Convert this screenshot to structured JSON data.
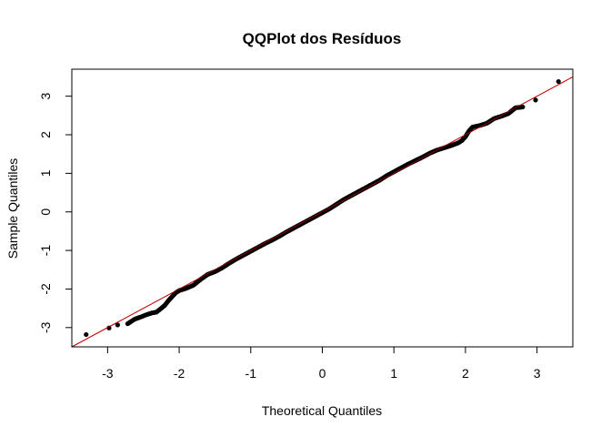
{
  "chart_data": {
    "type": "scatter",
    "title": "QQPlot dos Resíduos",
    "xlabel": "Theoretical Quantiles",
    "ylabel": "Sample Quantiles",
    "xlim": [
      -3.5,
      3.5
    ],
    "ylim": [
      -3.5,
      3.7
    ],
    "x_ticks": [
      -3,
      -2,
      -1,
      0,
      1,
      2,
      3
    ],
    "x_tick_labels": [
      "-3",
      "-2",
      "-1",
      "0",
      "1",
      "2",
      "3"
    ],
    "y_ticks": [
      -3,
      -2,
      -1,
      0,
      1,
      2,
      3
    ],
    "y_tick_labels": [
      "-3",
      "-2",
      "-1",
      "0",
      "1",
      "2",
      "3"
    ],
    "grid": false,
    "legend": "none",
    "point_color": "#000000",
    "line_color": "#cc0000",
    "reference_line": {
      "slope": 1.0,
      "intercept": 0.0
    },
    "points": [
      [
        -3.3,
        -3.18
      ],
      [
        -2.98,
        -3.01
      ],
      [
        -2.86,
        -2.93
      ],
      [
        -2.72,
        -2.9
      ],
      [
        -2.62,
        -2.78
      ],
      [
        -2.53,
        -2.72
      ],
      [
        -2.45,
        -2.66
      ],
      [
        -2.38,
        -2.62
      ],
      [
        -2.32,
        -2.6
      ],
      [
        -2.25,
        -2.5
      ],
      [
        -2.2,
        -2.42
      ],
      [
        -2.15,
        -2.3
      ],
      [
        -2.1,
        -2.2
      ],
      [
        -2.05,
        -2.1
      ],
      [
        -2.0,
        -2.04
      ],
      [
        -1.9,
        -1.98
      ],
      [
        -1.8,
        -1.9
      ],
      [
        -1.7,
        -1.75
      ],
      [
        -1.6,
        -1.62
      ],
      [
        -1.5,
        -1.55
      ],
      [
        -1.4,
        -1.45
      ],
      [
        -1.3,
        -1.33
      ],
      [
        -1.2,
        -1.22
      ],
      [
        -1.1,
        -1.12
      ],
      [
        -1.0,
        -1.02
      ],
      [
        -0.9,
        -0.92
      ],
      [
        -0.8,
        -0.82
      ],
      [
        -0.7,
        -0.73
      ],
      [
        -0.6,
        -0.63
      ],
      [
        -0.5,
        -0.52
      ],
      [
        -0.4,
        -0.42
      ],
      [
        -0.3,
        -0.32
      ],
      [
        -0.2,
        -0.22
      ],
      [
        -0.1,
        -0.12
      ],
      [
        0.0,
        -0.02
      ],
      [
        0.1,
        0.08
      ],
      [
        0.2,
        0.2
      ],
      [
        0.3,
        0.32
      ],
      [
        0.4,
        0.42
      ],
      [
        0.5,
        0.52
      ],
      [
        0.6,
        0.62
      ],
      [
        0.7,
        0.72
      ],
      [
        0.8,
        0.82
      ],
      [
        0.9,
        0.94
      ],
      [
        1.0,
        1.04
      ],
      [
        1.1,
        1.14
      ],
      [
        1.2,
        1.24
      ],
      [
        1.3,
        1.33
      ],
      [
        1.4,
        1.42
      ],
      [
        1.5,
        1.52
      ],
      [
        1.6,
        1.6
      ],
      [
        1.7,
        1.66
      ],
      [
        1.8,
        1.72
      ],
      [
        1.9,
        1.79
      ],
      [
        1.95,
        1.85
      ],
      [
        2.0,
        1.95
      ],
      [
        2.05,
        2.1
      ],
      [
        2.1,
        2.2
      ],
      [
        2.2,
        2.24
      ],
      [
        2.3,
        2.3
      ],
      [
        2.4,
        2.42
      ],
      [
        2.5,
        2.48
      ],
      [
        2.6,
        2.55
      ],
      [
        2.7,
        2.7
      ],
      [
        2.8,
        2.72
      ],
      [
        2.98,
        2.9
      ],
      [
        3.3,
        3.38
      ]
    ]
  }
}
